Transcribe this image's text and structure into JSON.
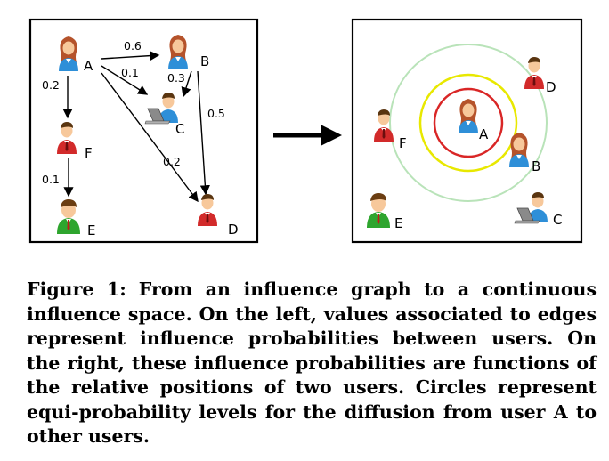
{
  "left_graph": {
    "nodes": [
      {
        "id": "A",
        "label": "A",
        "figure": "female"
      },
      {
        "id": "B",
        "label": "B",
        "figure": "female"
      },
      {
        "id": "C",
        "label": "C",
        "figure": "laptop-user"
      },
      {
        "id": "D",
        "label": "D",
        "figure": "male-red"
      },
      {
        "id": "E",
        "label": "E",
        "figure": "male-green"
      },
      {
        "id": "F",
        "label": "F",
        "figure": "male-red"
      }
    ],
    "edges": [
      {
        "from": "A",
        "to": "B",
        "label": "0.6"
      },
      {
        "from": "A",
        "to": "C",
        "label": "0.1"
      },
      {
        "from": "B",
        "to": "C",
        "label": "0.3"
      },
      {
        "from": "A",
        "to": "F",
        "label": "0.2"
      },
      {
        "from": "B",
        "to": "D",
        "label": "0.5"
      },
      {
        "from": "A",
        "to": "D",
        "label": "0.2"
      },
      {
        "from": "F",
        "to": "E",
        "label": "0.1"
      }
    ]
  },
  "right_space": {
    "nodes": [
      {
        "id": "A",
        "label": "A",
        "figure": "female"
      },
      {
        "id": "B",
        "label": "B",
        "figure": "female"
      },
      {
        "id": "C",
        "label": "C",
        "figure": "laptop-user"
      },
      {
        "id": "D",
        "label": "D",
        "figure": "male-red"
      },
      {
        "id": "E",
        "label": "E",
        "figure": "male-green"
      },
      {
        "id": "F",
        "label": "F",
        "figure": "male-red"
      }
    ],
    "circle_colors": [
      "#d92626",
      "#e8e800",
      "#b9e3b9"
    ]
  },
  "caption": {
    "label": "Figure 1:",
    "text": "From an influence graph to a continuous influence space. On the left, values associated to edges represent influence probabilities between users. On the right, these influence probabilities are functions of the relative positions of two users. Circles represent equi-probability levels for the diffusion from user A to other users."
  }
}
